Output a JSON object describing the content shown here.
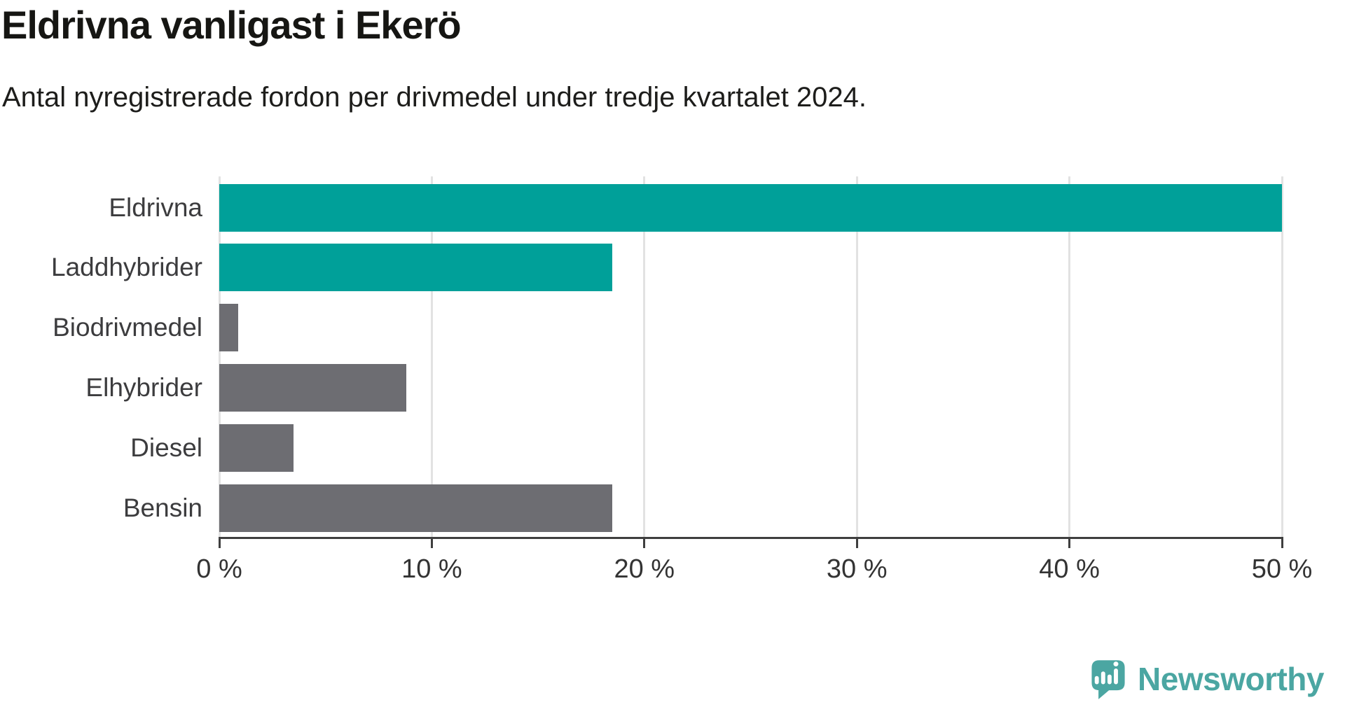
{
  "header": {
    "title": "Eldrivna vanligast i Ekerö",
    "subtitle": "Antal nyregistrerade fordon per drivmedel under tredje kvartalet 2024."
  },
  "chart_data": {
    "type": "bar",
    "orientation": "horizontal",
    "title": "Eldrivna vanligast i Ekerö",
    "subtitle": "Antal nyregistrerade fordon per drivmedel under tredje kvartalet 2024.",
    "categories": [
      "Eldrivna",
      "Laddhybrider",
      "Biodrivmedel",
      "Elhybrider",
      "Diesel",
      "Bensin"
    ],
    "values": [
      50.0,
      18.5,
      0.9,
      8.8,
      3.5,
      18.5
    ],
    "unit": "%",
    "bar_colors": [
      "#00a099",
      "#00a099",
      "#6d6d72",
      "#6d6d72",
      "#6d6d72",
      "#6d6d72"
    ],
    "highlight_color": "#00a099",
    "default_color": "#6d6d72",
    "xlim": [
      0,
      50
    ],
    "x_tick_values": [
      0,
      10,
      20,
      30,
      40,
      50
    ],
    "x_tick_labels": [
      "0 %",
      "10 %",
      "20 %",
      "30 %",
      "40 %",
      "50 %"
    ],
    "grid": true,
    "gridline_color": "#e2e2e2",
    "axis_color": "#3f3f3f",
    "legend": "none"
  },
  "footer": {
    "brand": "Newsworthy",
    "brand_color": "#4ba6a2"
  }
}
